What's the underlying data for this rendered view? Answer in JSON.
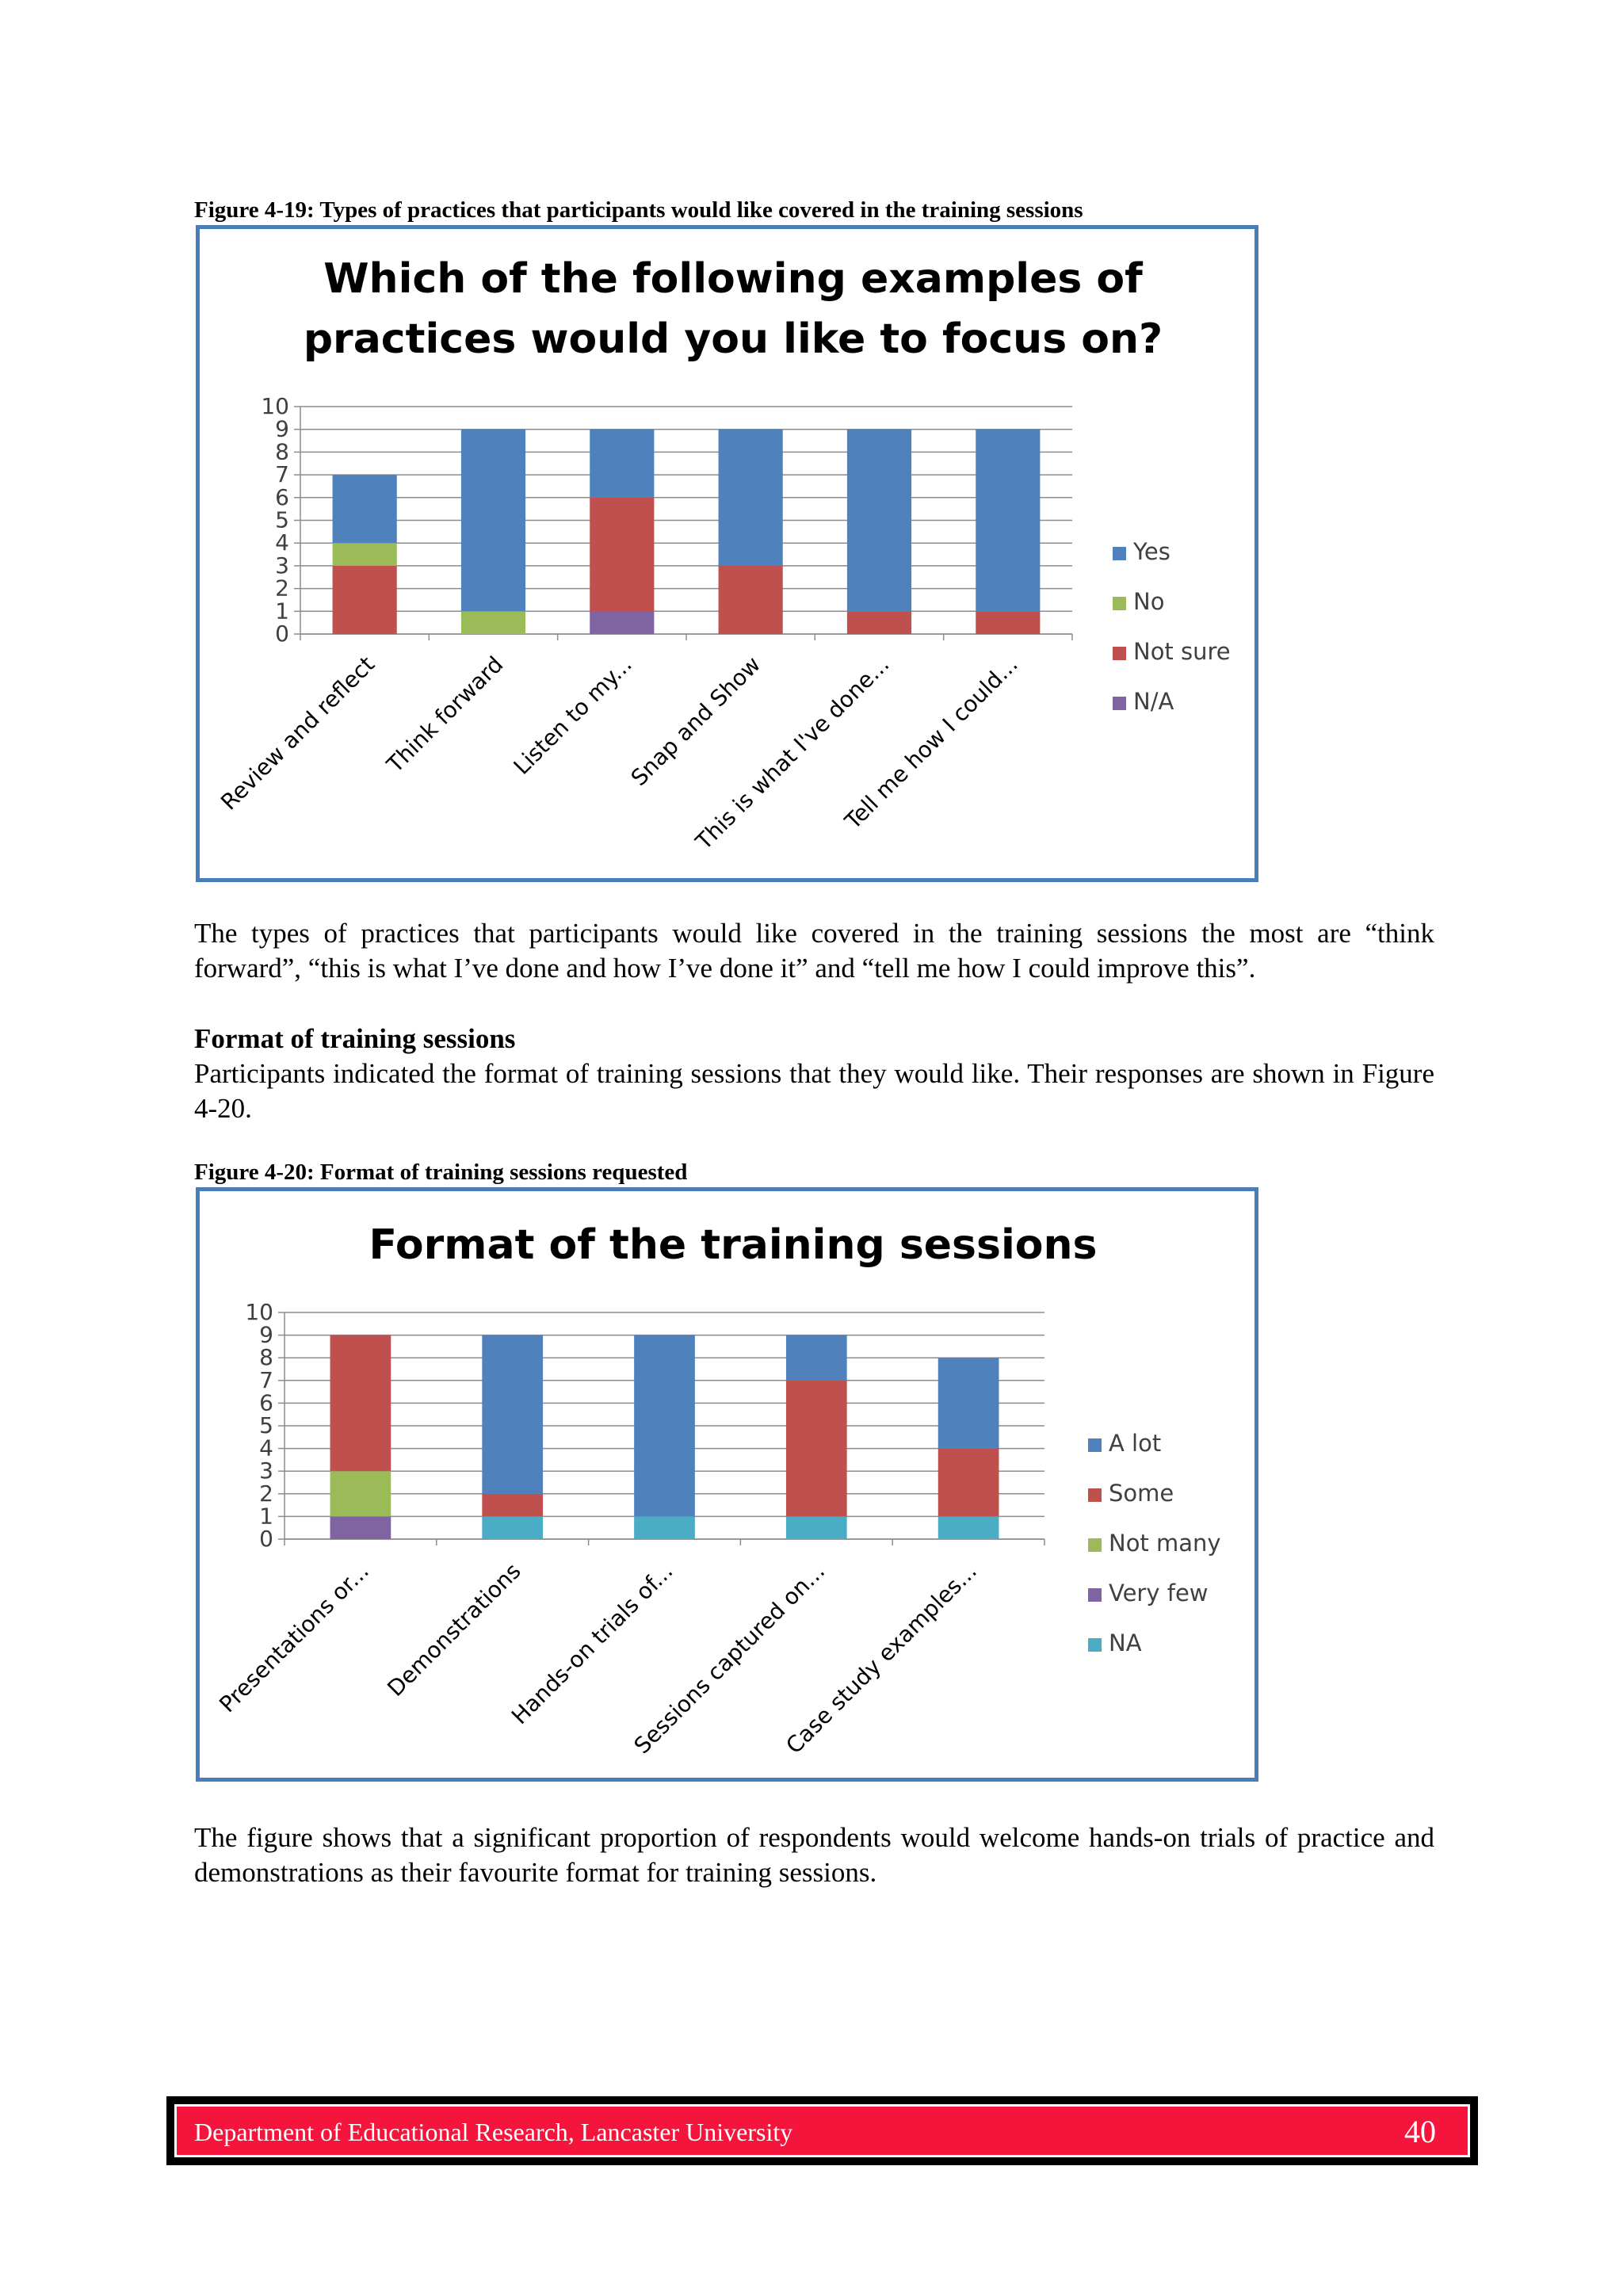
{
  "figure1": {
    "caption": "Figure 4-19: Types of practices that participants would like covered in the training sessions"
  },
  "paragraph1": "The types of practices that participants would like covered in the training sessions the most are “think forward”, “this is what I’ve done and how I’ve done it” and “tell me how I could improve this”.",
  "section": {
    "heading": "Format of training sessions",
    "text": "Participants indicated the format of training sessions that they would like. Their responses are shown in Figure 4-20."
  },
  "figure2": {
    "caption": "Figure 4-20: Format of training sessions requested"
  },
  "paragraph2": "The figure shows that a significant proportion of respondents would welcome hands-on trials of practice and demonstrations as their favourite format for training sessions.",
  "footer": {
    "text": "Department of Educational Research, Lancaster University",
    "page": "40"
  },
  "chart_data": [
    {
      "type": "bar",
      "stacked": true,
      "title_lines": [
        "Which of the following examples of",
        "practices would you like to focus on?"
      ],
      "categories": [
        "Review and reflect",
        "Think forward",
        "Listen to my...",
        "Snap and Show",
        "This is what I've done...",
        "Tell me how I could..."
      ],
      "series": [
        {
          "name": "N/A",
          "color": "#8064a2",
          "values": [
            0,
            0,
            1,
            0,
            0,
            0
          ]
        },
        {
          "name": "Not sure",
          "color": "#c0504d",
          "values": [
            3,
            0,
            5,
            3,
            1,
            1
          ]
        },
        {
          "name": "No",
          "color": "#9bbb59",
          "values": [
            1,
            1,
            0,
            0,
            0,
            0
          ]
        },
        {
          "name": "Yes",
          "color": "#4f81bd",
          "values": [
            3,
            8,
            3,
            6,
            8,
            8
          ]
        }
      ],
      "legend_order": [
        "Yes",
        "No",
        "Not sure",
        "N/A"
      ],
      "legend": "right",
      "ylim": [
        0,
        10
      ],
      "yticks": [
        "0",
        "1",
        "2",
        "3",
        "4",
        "5",
        "6",
        "7",
        "8",
        "9",
        "10"
      ],
      "grid": true
    },
    {
      "type": "bar",
      "stacked": true,
      "title_lines": [
        "Format of the training sessions"
      ],
      "categories": [
        "Presentations or...",
        "Demonstrations",
        "Hands-on trials of...",
        "Sessions captured on...",
        "Case study examples..."
      ],
      "series": [
        {
          "name": "NA",
          "color": "#4bacc6",
          "values": [
            0,
            1,
            1,
            1,
            1
          ]
        },
        {
          "name": "Very few",
          "color": "#8064a2",
          "values": [
            1,
            0,
            0,
            0,
            0
          ]
        },
        {
          "name": "Not many",
          "color": "#9bbb59",
          "values": [
            2,
            0,
            0,
            0,
            0
          ]
        },
        {
          "name": "Some",
          "color": "#c0504d",
          "values": [
            6,
            1,
            0,
            6,
            3
          ]
        },
        {
          "name": "A lot",
          "color": "#4f81bd",
          "values": [
            0,
            7,
            8,
            2,
            4
          ]
        }
      ],
      "legend_order": [
        "A lot",
        "Some",
        "Not many",
        "Very few",
        "NA"
      ],
      "legend": "right",
      "ylim": [
        0,
        10
      ],
      "yticks": [
        "0",
        "1",
        "2",
        "3",
        "4",
        "5",
        "6",
        "7",
        "8",
        "9",
        "10"
      ],
      "grid": true
    }
  ]
}
